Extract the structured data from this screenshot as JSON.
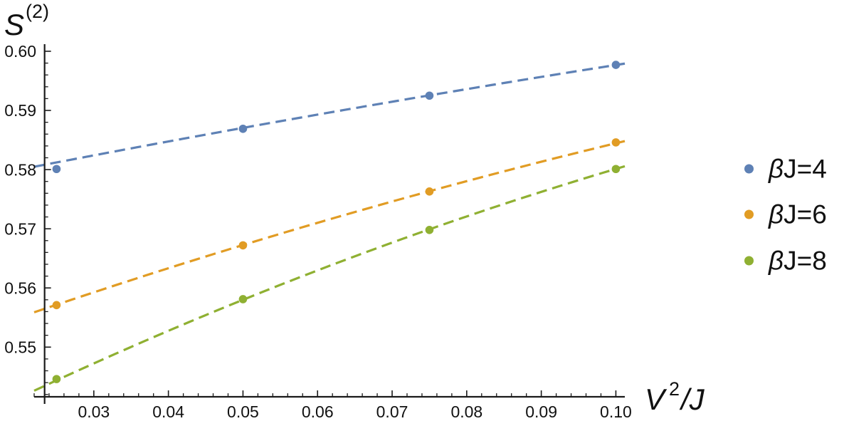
{
  "chart_data": {
    "type": "scatter",
    "x": [
      0.025,
      0.05,
      0.075,
      0.1
    ],
    "series": [
      {
        "name": "βJ=4",
        "color": "#5E81B5",
        "values": [
          0.5801,
          0.5869,
          0.5925,
          0.5977
        ],
        "fit": {
          "line_style": "dashed",
          "x": [
            0.022,
            0.05,
            0.075,
            0.1012
          ],
          "y": [
            0.5805,
            0.587,
            0.5926,
            0.5979
          ]
        }
      },
      {
        "name": "βJ=6",
        "color": "#E19C24",
        "values": [
          0.5571,
          0.5672,
          0.5763,
          0.5846
        ],
        "fit": {
          "line_style": "dashed",
          "x": [
            0.022,
            0.05,
            0.075,
            0.1012
          ],
          "y": [
            0.5559,
            0.5672,
            0.5764,
            0.5848
          ]
        }
      },
      {
        "name": "βJ=8",
        "color": "#8FB032",
        "values": [
          0.5446,
          0.5581,
          0.5698,
          0.5801
        ],
        "fit": {
          "line_style": "dashed",
          "x": [
            0.022,
            0.05,
            0.075,
            0.1012
          ],
          "y": [
            0.5426,
            0.5581,
            0.5698,
            0.5806
          ]
        }
      }
    ],
    "xlabel": {
      "symbol": "V",
      "superscript": "2",
      "suffix": "/J"
    },
    "ylabel": {
      "symbol": "S",
      "superscript": "(2)"
    },
    "xlim": [
      0.022,
      0.1012
    ],
    "ylim": [
      0.5404,
      0.6012
    ],
    "axes_origin": [
      0.0234,
      0.5416
    ],
    "x_ticks": [
      {
        "value": 0.03,
        "label": "0.03"
      },
      {
        "value": 0.04,
        "label": "0.04"
      },
      {
        "value": 0.05,
        "label": "0.05"
      },
      {
        "value": 0.06,
        "label": "0.06"
      },
      {
        "value": 0.07,
        "label": "0.07"
      },
      {
        "value": 0.08,
        "label": "0.08"
      },
      {
        "value": 0.09,
        "label": "0.09"
      },
      {
        "value": 0.1,
        "label": "0.10"
      }
    ],
    "y_ticks": [
      {
        "value": 0.55,
        "label": "0.55"
      },
      {
        "value": 0.56,
        "label": "0.56"
      },
      {
        "value": 0.57,
        "label": "0.57"
      },
      {
        "value": 0.58,
        "label": "0.58"
      },
      {
        "value": 0.59,
        "label": "0.59"
      },
      {
        "value": 0.6,
        "label": "0.60"
      }
    ],
    "grid": false,
    "legend": "right"
  }
}
